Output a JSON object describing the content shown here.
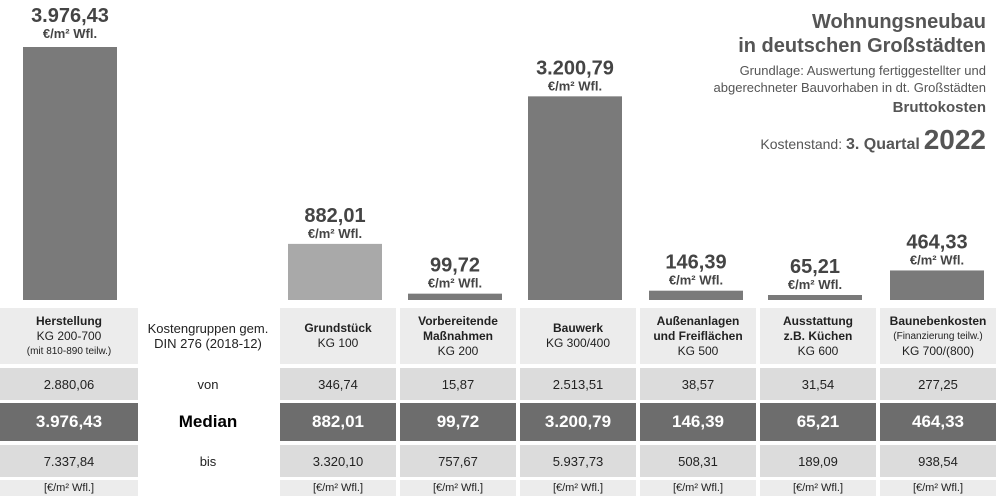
{
  "title": {
    "line1": "Wohnungsneubau",
    "line2": "in deutschen Großstädten",
    "subtitle1": "Grundlage: Auswertung fertiggestellter und",
    "subtitle2": "abgerechneter Bauvorhaben in dt. Großstädten",
    "basis": "Bruttokosten",
    "stand_label": "Kostenstand:",
    "quarter": "3. Quartal",
    "year": "2022"
  },
  "kostengruppen_label": {
    "line1": "Kostengruppen gem.",
    "line2": "DIN 276 (2018-12)"
  },
  "row_labels": {
    "von": "von",
    "median": "Median",
    "bis": "bis"
  },
  "bar_unit": "€/m² Wfl.",
  "colors": {
    "bar_dark": "#7a7a7a",
    "bar_light": "#a9a9a9"
  },
  "chart_data": {
    "type": "bar",
    "categories": [
      {
        "title": "Herstellung",
        "sub1": "KG 200-700",
        "sub2": "(mit 810-890 teilw.)"
      },
      {
        "title": "Grundstück",
        "sub1": "KG 100",
        "sub2": ""
      },
      {
        "title": "Vorbereitende",
        "title2": "Maßnahmen",
        "sub1": "KG 200",
        "sub2": ""
      },
      {
        "title": "Bauwerk",
        "sub1": "KG 300/400",
        "sub2": ""
      },
      {
        "title": "Außenanlagen",
        "title2": "und Freiflächen",
        "sub1": "KG 500",
        "sub2": ""
      },
      {
        "title": "Ausstattung",
        "title2": "z.B. Küchen",
        "sub1": "KG 600",
        "sub2": ""
      },
      {
        "title": "Baunebenkosten",
        "sub0": "(Finanzierung teilw.)",
        "sub1": "KG 700/(800)",
        "sub2": ""
      }
    ],
    "values": [
      3976.43,
      882.01,
      99.72,
      3200.79,
      146.39,
      65.21,
      464.33
    ],
    "value_labels": [
      "3.976,43",
      "882,01",
      "99,72",
      "3.200,79",
      "146,39",
      "65,21",
      "464,33"
    ],
    "von": [
      "2.880,06",
      "346,74",
      "15,87",
      "2.513,51",
      "38,57",
      "31,54",
      "277,25"
    ],
    "median": [
      "3.976,43",
      "882,01",
      "99,72",
      "3.200,79",
      "146,39",
      "65,21",
      "464,33"
    ],
    "bis": [
      "7.337,84",
      "3.320,10",
      "757,67",
      "5.937,73",
      "508,31",
      "189,09",
      "938,54"
    ],
    "unit_cells": [
      "[€/m² Wfl.]",
      "[€/m² Wfl.]",
      "[€/m² Wfl.]",
      "[€/m² Wfl.]",
      "[€/m² Wfl.]",
      "[€/m² Wfl.]",
      "[€/m² Wfl.]"
    ],
    "bar_styles": [
      "dark",
      "light",
      "dark",
      "dark",
      "dark",
      "dark",
      "dark"
    ],
    "ylim": [
      0,
      3976.43
    ]
  }
}
